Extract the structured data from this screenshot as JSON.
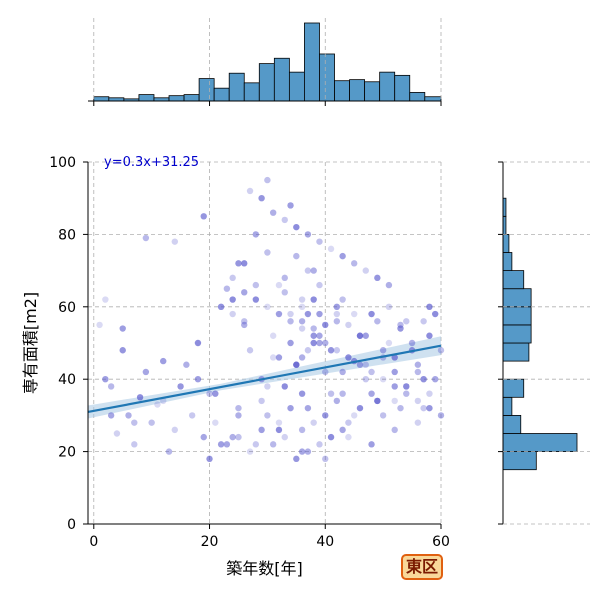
{
  "chart_data": {
    "type": "scatter",
    "xlabel": "築年数[年]",
    "ylabel": "専有面積[m2]",
    "xlim": [
      -1,
      60
    ],
    "ylim": [
      0,
      100
    ],
    "x_ticks": [
      0,
      20,
      40,
      60
    ],
    "y_ticks": [
      0,
      20,
      40,
      60,
      80,
      100
    ],
    "grid": true,
    "annotation": "y=0.3x+31.25",
    "regression": {
      "slope": 0.3,
      "intercept": 31.25,
      "x_range": [
        -1,
        60
      ],
      "ci_band": true
    },
    "badge": "東区",
    "x_histogram": {
      "bin_edges": [
        0,
        2.6,
        5.2,
        7.8,
        10.4,
        13,
        15.6,
        18.2,
        20.8,
        23.4,
        26,
        28.6,
        31.2,
        33.8,
        36.4,
        39,
        41.6,
        44.2,
        46.8,
        49.4,
        52,
        54.6,
        57.2,
        60
      ],
      "counts": [
        4,
        3,
        2,
        6,
        3,
        5,
        6,
        21,
        12,
        26,
        17,
        35,
        40,
        27,
        73,
        44,
        19,
        20,
        18,
        27,
        24,
        8,
        4
      ]
    },
    "y_histogram": {
      "bin_edges": [
        0,
        5,
        10,
        15,
        20,
        25,
        30,
        35,
        40,
        45,
        50,
        55,
        60,
        65,
        70,
        75,
        80,
        85,
        90,
        95,
        100
      ],
      "counts": [
        0,
        0,
        0,
        45,
        100,
        24,
        12,
        28,
        0,
        35,
        38,
        38,
        38,
        28,
        12,
        8,
        4,
        4,
        0,
        0
      ]
    },
    "points": {
      "x": [
        1,
        2,
        3,
        4,
        5,
        6,
        7,
        8,
        9,
        10,
        11,
        12,
        13,
        14,
        15,
        16,
        17,
        18,
        19,
        20,
        21,
        22,
        23,
        24,
        25,
        26,
        27,
        28,
        29,
        30,
        31,
        32,
        33,
        34,
        35,
        36,
        37,
        38,
        39,
        40,
        41,
        42,
        43,
        44,
        45,
        46,
        47,
        48,
        49,
        50,
        51,
        52,
        53,
        54,
        55,
        56,
        57,
        58,
        59,
        60,
        2,
        5,
        9,
        14,
        19,
        22,
        24,
        26,
        28,
        30,
        32,
        34,
        35,
        36,
        37,
        38,
        39,
        40,
        41,
        43,
        45,
        47,
        49,
        51,
        53,
        55,
        57,
        59,
        23,
        25,
        27,
        29,
        31,
        33,
        35,
        37,
        39,
        41,
        43,
        30,
        32,
        34,
        36,
        38,
        40,
        42,
        44,
        46,
        48,
        50,
        52,
        54,
        56,
        58,
        20,
        24,
        28,
        32,
        36,
        40,
        44,
        48,
        52,
        56,
        21,
        25,
        29,
        33,
        37,
        41,
        45,
        49,
        53,
        57,
        35,
        36,
        37,
        38,
        39,
        26,
        31,
        34,
        38,
        42,
        46,
        50,
        54,
        58,
        3,
        7,
        12,
        18,
        25,
        30,
        36,
        43,
        47,
        52,
        57,
        33,
        36,
        39,
        42,
        27,
        29,
        31,
        33,
        35,
        37,
        39,
        41,
        43,
        45,
        47,
        49,
        51,
        22,
        24,
        26,
        28,
        30,
        32,
        34,
        36,
        38,
        40,
        42,
        44,
        46,
        48,
        50,
        52,
        54,
        56,
        58,
        60
      ],
      "y": [
        55,
        40,
        38,
        25,
        48,
        30,
        22,
        35,
        42,
        28,
        33,
        45,
        20,
        26,
        38,
        44,
        30,
        50,
        24,
        36,
        28,
        22,
        65,
        58,
        72,
        55,
        48,
        62,
        40,
        75,
        52,
        46,
        68,
        58,
        44,
        56,
        70,
        62,
        50,
        42,
        48,
        60,
        36,
        55,
        45,
        52,
        40,
        58,
        34,
        46,
        50,
        42,
        55,
        38,
        48,
        44,
        32,
        52,
        40,
        48,
        62,
        54,
        79,
        78,
        85,
        60,
        68,
        72,
        80,
        95,
        66,
        88,
        74,
        62,
        58,
        70,
        66,
        55,
        48,
        62,
        58,
        52,
        56,
        60,
        54,
        50,
        56,
        58,
        22,
        24,
        20,
        26,
        22,
        24,
        18,
        20,
        22,
        24,
        26,
        30,
        28,
        32,
        26,
        28,
        30,
        34,
        28,
        32,
        36,
        30,
        34,
        38,
        42,
        36,
        18,
        24,
        22,
        26,
        20,
        18,
        24,
        22,
        26,
        28,
        36,
        30,
        34,
        38,
        32,
        36,
        30,
        34,
        32,
        40,
        44,
        46,
        48,
        50,
        52,
        56,
        46,
        50,
        54,
        58,
        52,
        48,
        56,
        60,
        30,
        28,
        34,
        40,
        32,
        38,
        36,
        42,
        44,
        46,
        40,
        64,
        60,
        58,
        56,
        92,
        90,
        86,
        84,
        82,
        80,
        78,
        76,
        74,
        72,
        70,
        68,
        66,
        60,
        62,
        64,
        66,
        60,
        58,
        56,
        54,
        52,
        50,
        48,
        46,
        44,
        42,
        40,
        38,
        36,
        34,
        32,
        30
      ]
    }
  }
}
